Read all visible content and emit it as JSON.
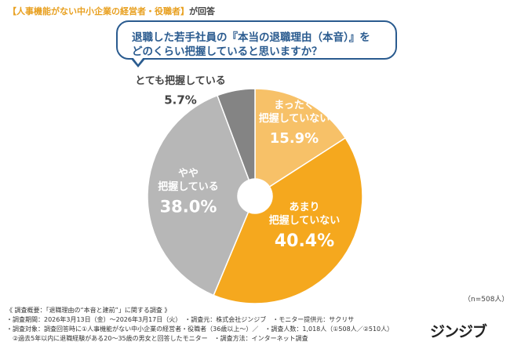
{
  "header": {
    "target_label": "【人事機能がない中小企業の経営者・役職者】",
    "suffix": "が回答"
  },
  "question": {
    "line1": "退職した若手社員の『本当の退職理由（本音）』を",
    "line2": "どのくらい把握していると思いますか？"
  },
  "chart_data": {
    "type": "pie",
    "donut": true,
    "start_angle_deg": 0,
    "direction": "clockwise",
    "slices": [
      {
        "label_lines": [
          "まったく",
          "把握していない"
        ],
        "value": 15.9,
        "value_text": "15.9%",
        "color": "#f7c168",
        "label_color": "#ffffff"
      },
      {
        "label_lines": [
          "あまり",
          "把握していない"
        ],
        "value": 40.4,
        "value_text": "40.4%",
        "color": "#f5a81e",
        "label_color": "#ffffff"
      },
      {
        "label_lines": [
          "やや",
          "把握している"
        ],
        "value": 38.0,
        "value_text": "38.0%",
        "color": "#b7b7b7",
        "label_color": "#ffffff"
      },
      {
        "label_lines": [
          "とても把握している"
        ],
        "value": 5.7,
        "value_text": "5.7%",
        "color": "#848484",
        "label_color": "#444444"
      }
    ]
  },
  "n_label": "（n=508人）",
  "notes": [
    "《 調査概要：「退職理由の“本音と建前”」に関する調査 》",
    "・調査期間：2026年3月13日（金）〜2026年3月17日（火）　・調査元：株式会社ジンジブ　・モニター提供元：サクリサ",
    "・調査対象：調査回答時に①人事機能がない中小企業の経営者・役職者（36歳以上〜）／　・調査人数：1,018人（①508人／②510人）",
    "　②過去5年以内に退職経験がある20〜35歳の男女と回答したモニター　・調査方法：インターネット調査"
  ],
  "logo_text": "ジンジブ"
}
